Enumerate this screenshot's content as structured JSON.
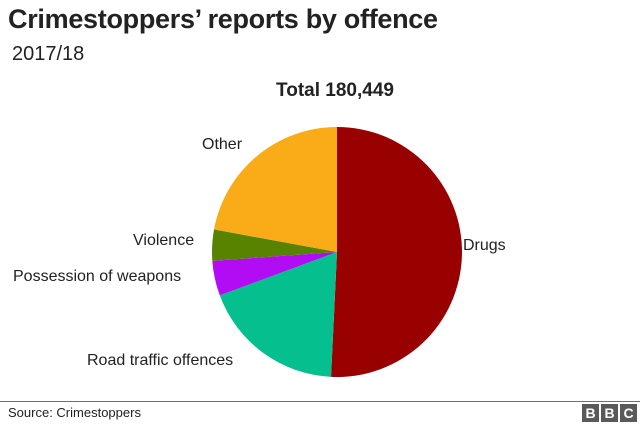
{
  "header": {
    "title": "Crimestoppers’ reports by offence",
    "subtitle": "2017/18",
    "total_label": "Total 180,449"
  },
  "footer": {
    "source": "Source: Crimestoppers",
    "logo": [
      "B",
      "B",
      "C"
    ]
  },
  "chart_data": {
    "type": "pie",
    "title": "Crimestoppers’ reports by offence",
    "subtitle": "2017/18",
    "annotation": "Total 180,449",
    "total": 180449,
    "start_angle_deg": 0,
    "direction": "clockwise",
    "categories": [
      "Drugs",
      "Road traffic offences",
      "Possession of weapons",
      "Violence",
      "Other"
    ],
    "values": [
      91600,
      33550,
      8150,
      7250,
      39899
    ],
    "percent_estimates": [
      50.8,
      18.6,
      4.5,
      4.0,
      22.1
    ],
    "colors": [
      "#990000",
      "#05c08e",
      "#b20cf5",
      "#588300",
      "#faab18"
    ],
    "legend": "inline labels next to slices"
  }
}
